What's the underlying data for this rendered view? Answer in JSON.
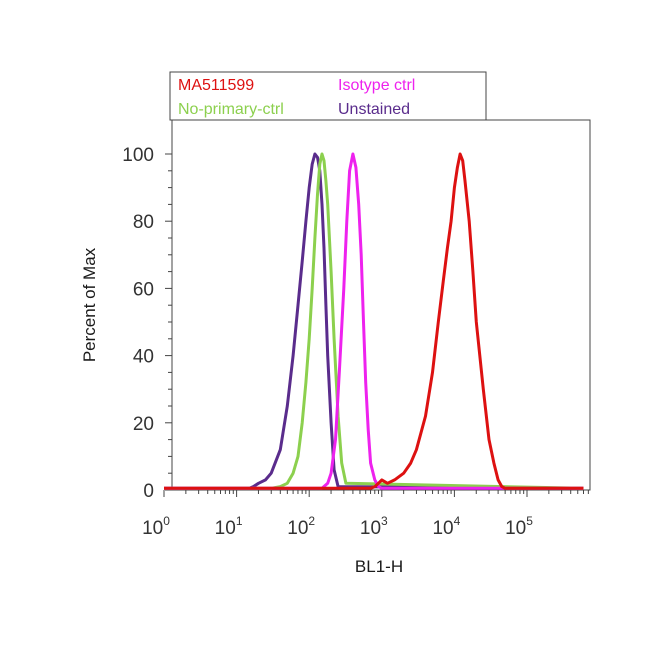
{
  "chart_data": {
    "type": "line",
    "title": "",
    "xlabel": "BL1-H",
    "ylabel": "Percent of Max",
    "x_scale": "log",
    "xlim": [
      1,
      600000
    ],
    "ylim": [
      0,
      105
    ],
    "x_ticks": [
      {
        "value": 1,
        "base": "10",
        "exp": "0"
      },
      {
        "value": 10,
        "base": "10",
        "exp": "1"
      },
      {
        "value": 100,
        "base": "10",
        "exp": "2"
      },
      {
        "value": 1000,
        "base": "10",
        "exp": "3"
      },
      {
        "value": 10000,
        "base": "10",
        "exp": "4"
      },
      {
        "value": 100000,
        "base": "10",
        "exp": "5"
      }
    ],
    "y_ticks": [
      "0",
      "20",
      "40",
      "60",
      "80",
      "100"
    ],
    "y_tick_values": [
      0,
      20,
      40,
      60,
      80,
      100
    ],
    "grid": false,
    "legend_position": "top",
    "series": [
      {
        "name": "Unstained",
        "color": "#5a2c8c",
        "x": [
          1,
          15,
          17,
          20,
          25,
          30,
          40,
          50,
          60,
          70,
          80,
          90,
          100,
          110,
          120,
          130,
          140,
          150,
          160,
          170,
          180,
          200,
          220,
          250,
          600000
        ],
        "y": [
          0.5,
          0.5,
          1,
          2,
          3,
          5,
          12,
          25,
          40,
          55,
          68,
          80,
          90,
          97,
          100,
          99,
          95,
          85,
          72,
          55,
          40,
          20,
          6,
          1,
          0.5
        ]
      },
      {
        "name": "No-primary-ctrl",
        "color": "#8cd04e",
        "x": [
          1,
          30,
          40,
          50,
          60,
          70,
          80,
          90,
          100,
          110,
          120,
          130,
          140,
          150,
          160,
          170,
          180,
          200,
          220,
          250,
          280,
          320,
          600000
        ],
        "y": [
          0.5,
          0.5,
          1,
          2,
          5,
          10,
          20,
          32,
          45,
          60,
          75,
          88,
          97,
          100,
          98,
          92,
          85,
          65,
          45,
          22,
          8,
          2,
          0.5
        ]
      },
      {
        "name": "Isotype ctrl",
        "color": "#ee22ee",
        "x": [
          1,
          150,
          180,
          200,
          230,
          260,
          300,
          330,
          360,
          400,
          440,
          480,
          520,
          560,
          600,
          650,
          700,
          800,
          900,
          1000,
          600000
        ],
        "y": [
          0.5,
          0.5,
          2,
          5,
          15,
          35,
          60,
          80,
          95,
          100,
          96,
          85,
          70,
          50,
          32,
          18,
          8,
          3,
          1,
          0.5,
          0.5
        ]
      },
      {
        "name": "MA511599",
        "color": "#dd1111",
        "x": [
          1,
          700,
          800,
          900,
          1000,
          1200,
          1500,
          2000,
          2500,
          3000,
          4000,
          5000,
          6000,
          7000,
          8000,
          9000,
          10000,
          11000,
          12000,
          13000,
          14000,
          16000,
          18000,
          20000,
          25000,
          30000,
          35000,
          40000,
          45000,
          50000,
          600000
        ],
        "y": [
          0.5,
          0.5,
          1,
          2,
          3,
          2,
          3,
          5,
          8,
          12,
          22,
          35,
          50,
          62,
          72,
          80,
          90,
          96,
          100,
          98,
          92,
          80,
          65,
          50,
          30,
          15,
          8,
          3,
          1,
          0.5,
          0.5
        ]
      }
    ]
  },
  "legend": {
    "items": [
      {
        "label": "MA511599",
        "color": "#dd1111"
      },
      {
        "label": "Isotype ctrl",
        "color": "#ee22ee"
      },
      {
        "label": "No-primary-ctrl",
        "color": "#8cd04e"
      },
      {
        "label": "Unstained",
        "color": "#5a2c8c"
      }
    ]
  }
}
